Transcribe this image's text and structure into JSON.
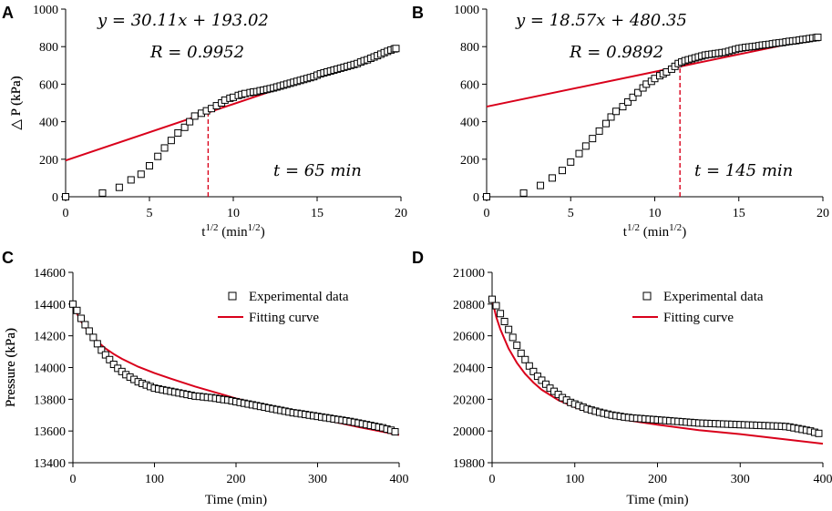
{
  "colors": {
    "fit": "#d9001b",
    "marker_stroke": "#000000",
    "background": "#ffffff"
  },
  "chart_data": [
    {
      "type": "scatter",
      "panel_label": "A",
      "xlabel": "t1/2 (min1/2)",
      "xlabel_parts": {
        "base": "t",
        "base_sup": "1/2",
        "unit_open": " (min",
        "unit_sup": "1/2",
        "unit_close": ")"
      },
      "ylabel": "△ P (kPa)",
      "xlim": [
        0,
        20
      ],
      "ylim": [
        0,
        1000
      ],
      "xticks": [
        0,
        5,
        10,
        15,
        20
      ],
      "yticks": [
        0,
        200,
        400,
        600,
        800,
        1000
      ],
      "equation": "y = 30.11x + 193.02",
      "r_value": "R = 0.9952",
      "time_note": "t = 65 min",
      "fit": {
        "slope": 30.11,
        "intercept": 193.02,
        "x_range": [
          0,
          19.7
        ]
      },
      "guide_x": 8.5,
      "series": [
        {
          "name": "data",
          "x": [
            0,
            2.2,
            3.2,
            3.9,
            4.5,
            5.0,
            5.5,
            5.9,
            6.3,
            6.7,
            7.1,
            7.4,
            7.7,
            8.1,
            8.4,
            8.7,
            9.0,
            9.3,
            9.5,
            9.8,
            10.0,
            10.3,
            10.5,
            10.7,
            11.0,
            11.2,
            11.4,
            11.6,
            11.8,
            12.0,
            12.2,
            12.4,
            12.6,
            12.8,
            13.0,
            13.2,
            13.4,
            13.6,
            13.8,
            14.0,
            14.2,
            14.4,
            14.6,
            14.8,
            15.0,
            15.2,
            15.4,
            15.6,
            15.8,
            16.0,
            16.2,
            16.4,
            16.6,
            16.8,
            17.0,
            17.2,
            17.4,
            17.6,
            17.8,
            18.0,
            18.2,
            18.4,
            18.6,
            18.8,
            19.0,
            19.2,
            19.4,
            19.6,
            19.7
          ],
          "y": [
            0,
            20,
            50,
            90,
            120,
            165,
            215,
            260,
            300,
            340,
            370,
            400,
            430,
            445,
            458,
            470,
            485,
            500,
            515,
            525,
            530,
            540,
            545,
            550,
            555,
            558,
            560,
            565,
            568,
            572,
            576,
            580,
            585,
            590,
            595,
            600,
            605,
            610,
            615,
            620,
            625,
            630,
            635,
            640,
            648,
            655,
            660,
            665,
            670,
            675,
            680,
            685,
            690,
            695,
            700,
            705,
            710,
            718,
            725,
            730,
            738,
            745,
            752,
            760,
            768,
            775,
            782,
            788,
            790
          ]
        }
      ]
    },
    {
      "type": "scatter",
      "panel_label": "B",
      "xlabel": "t1/2 (min1/2)",
      "xlabel_parts": {
        "base": "t",
        "base_sup": "1/2",
        "unit_open": " (min",
        "unit_sup": "1/2",
        "unit_close": ")"
      },
      "ylabel": "△ P (kPa)",
      "xlim": [
        0,
        20
      ],
      "ylim": [
        0,
        1000
      ],
      "xticks": [
        0,
        5,
        10,
        15,
        20
      ],
      "yticks": [
        0,
        200,
        400,
        600,
        800,
        1000
      ],
      "equation": "y = 18.57x + 480.35",
      "r_value": "R = 0.9892",
      "time_note": "t = 145 min",
      "fit": {
        "slope": 18.57,
        "intercept": 480.35,
        "x_range": [
          0,
          19.7
        ]
      },
      "guide_x": 11.5,
      "series": [
        {
          "name": "data",
          "x": [
            0,
            2.2,
            3.2,
            3.9,
            4.5,
            5.0,
            5.5,
            5.9,
            6.3,
            6.7,
            7.1,
            7.4,
            7.7,
            8.1,
            8.4,
            8.7,
            9.0,
            9.3,
            9.5,
            9.8,
            10.0,
            10.3,
            10.5,
            10.7,
            11.0,
            11.2,
            11.4,
            11.6,
            11.8,
            12.0,
            12.2,
            12.4,
            12.6,
            12.8,
            13.0,
            13.2,
            13.4,
            13.6,
            13.8,
            14.0,
            14.2,
            14.4,
            14.6,
            14.8,
            15.0,
            15.2,
            15.4,
            15.6,
            15.8,
            16.0,
            16.2,
            16.4,
            16.6,
            16.8,
            17.0,
            17.2,
            17.4,
            17.6,
            17.8,
            18.0,
            18.2,
            18.4,
            18.6,
            18.8,
            19.0,
            19.2,
            19.4,
            19.6,
            19.7
          ],
          "y": [
            0,
            20,
            60,
            100,
            140,
            185,
            230,
            270,
            310,
            350,
            390,
            425,
            455,
            480,
            505,
            530,
            555,
            580,
            600,
            615,
            630,
            645,
            655,
            665,
            680,
            695,
            710,
            718,
            725,
            730,
            735,
            740,
            745,
            750,
            755,
            758,
            760,
            763,
            765,
            768,
            770,
            775,
            780,
            785,
            790,
            793,
            796,
            798,
            800,
            802,
            805,
            808,
            810,
            812,
            815,
            818,
            820,
            822,
            825,
            828,
            830,
            832,
            835,
            838,
            840,
            843,
            846,
            848,
            850
          ]
        }
      ]
    },
    {
      "type": "scatter",
      "panel_label": "C",
      "xlabel": "Time (min)",
      "ylabel": "Pressure (kPa)",
      "xlim": [
        0,
        400
      ],
      "ylim": [
        13400,
        14600
      ],
      "xticks": [
        0,
        100,
        200,
        300,
        400
      ],
      "yticks": [
        13400,
        13600,
        13800,
        14000,
        14200,
        14400,
        14600
      ],
      "legend": {
        "position": "top-right",
        "entries": [
          "Experimental data",
          "Fitting curve"
        ]
      },
      "fit_points": {
        "x": [
          0,
          5,
          10,
          20,
          30,
          40,
          50,
          60,
          80,
          100,
          120,
          150,
          180,
          200,
          250,
          300,
          350,
          400
        ],
        "y": [
          14400,
          14340,
          14290,
          14220,
          14165,
          14120,
          14085,
          14055,
          14005,
          13965,
          13930,
          13880,
          13835,
          13805,
          13740,
          13680,
          13625,
          13575
        ]
      },
      "series": [
        {
          "name": "Experimental data",
          "x": [
            0,
            5,
            10,
            15,
            20,
            25,
            30,
            35,
            40,
            45,
            50,
            55,
            60,
            65,
            70,
            75,
            80,
            85,
            90,
            95,
            100,
            105,
            110,
            115,
            120,
            125,
            130,
            135,
            140,
            145,
            150,
            155,
            160,
            165,
            170,
            175,
            180,
            185,
            190,
            195,
            200,
            205,
            210,
            215,
            220,
            225,
            230,
            235,
            240,
            245,
            250,
            255,
            260,
            265,
            270,
            275,
            280,
            285,
            290,
            295,
            300,
            305,
            310,
            315,
            320,
            325,
            330,
            335,
            340,
            345,
            350,
            355,
            360,
            365,
            370,
            375,
            380,
            385,
            390,
            395
          ],
          "y": [
            14400,
            14360,
            14310,
            14270,
            14230,
            14190,
            14150,
            14110,
            14080,
            14050,
            14020,
            13995,
            13975,
            13955,
            13940,
            13925,
            13910,
            13900,
            13890,
            13880,
            13870,
            13865,
            13860,
            13855,
            13850,
            13845,
            13840,
            13835,
            13830,
            13825,
            13820,
            13818,
            13815,
            13812,
            13810,
            13806,
            13802,
            13798,
            13795,
            13790,
            13785,
            13780,
            13775,
            13770,
            13765,
            13760,
            13755,
            13750,
            13745,
            13740,
            13735,
            13730,
            13725,
            13720,
            13715,
            13712,
            13708,
            13704,
            13700,
            13696,
            13692,
            13688,
            13684,
            13680,
            13676,
            13672,
            13668,
            13664,
            13660,
            13655,
            13650,
            13645,
            13640,
            13635,
            13630,
            13625,
            13620,
            13612,
            13605,
            13595
          ]
        }
      ]
    },
    {
      "type": "scatter",
      "panel_label": "D",
      "xlabel": "Time (min)",
      "ylabel": "Pressure (kPa)",
      "xlim": [
        0,
        400
      ],
      "ylim": [
        19800,
        21000
      ],
      "xticks": [
        0,
        100,
        200,
        300,
        400
      ],
      "yticks": [
        19800,
        20000,
        20200,
        20400,
        20600,
        20800,
        21000
      ],
      "legend": {
        "position": "top-right",
        "entries": [
          "Experimental data",
          "Fitting curve"
        ]
      },
      "fit_points": {
        "x": [
          0,
          5,
          10,
          20,
          30,
          40,
          50,
          60,
          80,
          100,
          120,
          150,
          180,
          200,
          250,
          300,
          350,
          400
        ],
        "y": [
          20830,
          20720,
          20640,
          20520,
          20430,
          20360,
          20305,
          20260,
          20195,
          20150,
          20115,
          20080,
          20055,
          20040,
          20005,
          19980,
          19950,
          19920
        ]
      },
      "series": [
        {
          "name": "Experimental data",
          "x": [
            0,
            5,
            10,
            15,
            20,
            25,
            30,
            35,
            40,
            45,
            50,
            55,
            60,
            65,
            70,
            75,
            80,
            85,
            90,
            95,
            100,
            105,
            110,
            115,
            120,
            125,
            130,
            135,
            140,
            145,
            150,
            155,
            160,
            165,
            170,
            175,
            180,
            185,
            190,
            195,
            200,
            205,
            210,
            215,
            220,
            225,
            230,
            235,
            240,
            245,
            250,
            255,
            260,
            265,
            270,
            275,
            280,
            285,
            290,
            295,
            300,
            305,
            310,
            315,
            320,
            325,
            330,
            335,
            340,
            345,
            350,
            355,
            360,
            365,
            370,
            375,
            380,
            385,
            390,
            395
          ],
          "y": [
            20830,
            20790,
            20740,
            20690,
            20640,
            20590,
            20540,
            20490,
            20450,
            20410,
            20375,
            20345,
            20320,
            20295,
            20270,
            20250,
            20230,
            20210,
            20195,
            20180,
            20170,
            20160,
            20150,
            20140,
            20132,
            20125,
            20118,
            20112,
            20106,
            20100,
            20096,
            20092,
            20088,
            20085,
            20082,
            20080,
            20078,
            20076,
            20074,
            20072,
            20070,
            20068,
            20066,
            20064,
            20062,
            20060,
            20058,
            20056,
            20054,
            20052,
            20050,
            20049,
            20048,
            20047,
            20046,
            20045,
            20044,
            20043,
            20042,
            20041,
            20040,
            20039,
            20038,
            20037,
            20036,
            20035,
            20034,
            20033,
            20032,
            20031,
            20030,
            20028,
            20025,
            20020,
            20015,
            20010,
            20005,
            20000,
            19992,
            19985
          ]
        }
      ]
    }
  ]
}
